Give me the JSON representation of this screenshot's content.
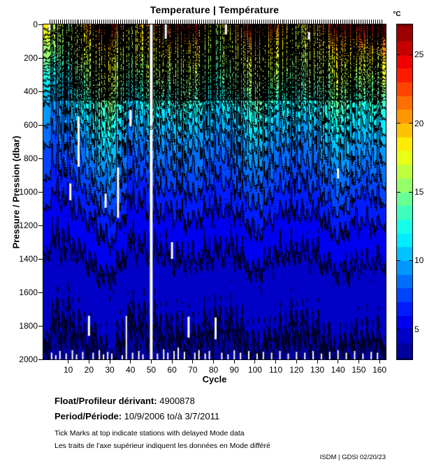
{
  "title": "Temperature | Température",
  "axes": {
    "x": {
      "label": "Cycle",
      "ticks": [
        10,
        20,
        30,
        40,
        50,
        60,
        70,
        80,
        90,
        100,
        110,
        120,
        130,
        140,
        150,
        160
      ],
      "range": [
        -2,
        163
      ]
    },
    "y": {
      "label": "Pressure / Pression (dbar)",
      "ticks": [
        0,
        200,
        400,
        600,
        800,
        1000,
        1200,
        1400,
        1600,
        1800,
        2000
      ],
      "range": [
        0,
        2000
      ],
      "inverted": true
    }
  },
  "colorbar": {
    "unit": "°C",
    "ticks": [
      5,
      10,
      15,
      20,
      25
    ],
    "vmin": 2.8,
    "vmax": 27.2,
    "band_step": 1
  },
  "chart_data": {
    "type": "heatmap",
    "title": "Temperature | Température",
    "xlabel": "Cycle",
    "ylabel": "Pressure / Pression (dbar)",
    "z_name": "temperature_c",
    "colormap": "jet",
    "contour_interval_c": 1,
    "cycles": [
      1,
      10,
      20,
      30,
      40,
      50,
      60,
      70,
      80,
      90,
      100,
      110,
      120,
      130,
      140,
      150,
      160
    ],
    "pressures": [
      0,
      50,
      100,
      200,
      300,
      400,
      500,
      700,
      1000,
      1200,
      1500,
      2000
    ],
    "temperature": [
      [
        17.0,
        16.0,
        21.0,
        25.5,
        17.0,
        21.0,
        24.0,
        25.5,
        16.0,
        21.0,
        26.5,
        22.0,
        17.5,
        21.0,
        26.0,
        25.0,
        27.0
      ],
      [
        16.5,
        15.8,
        19.5,
        23.0,
        16.6,
        20.0,
        22.0,
        23.0,
        15.6,
        19.0,
        23.5,
        20.0,
        17.0,
        19.5,
        23.5,
        22.5,
        24.5
      ],
      [
        15.5,
        15.5,
        18.5,
        20.5,
        16.2,
        19.0,
        19.5,
        20.5,
        15.3,
        18.0,
        21.0,
        18.5,
        16.8,
        18.5,
        21.0,
        20.5,
        21.5
      ],
      [
        13.0,
        14.5,
        17.0,
        18.3,
        15.2,
        17.5,
        17.0,
        18.0,
        14.8,
        16.5,
        18.0,
        17.0,
        16.0,
        17.0,
        18.3,
        17.8,
        18.2
      ],
      [
        11.2,
        12.5,
        15.5,
        17.8,
        13.5,
        16.0,
        15.5,
        16.0,
        13.6,
        15.0,
        16.5,
        15.5,
        14.8,
        15.5,
        17.0,
        16.0,
        16.3
      ],
      [
        10.0,
        11.0,
        13.8,
        16.3,
        11.5,
        14.0,
        13.5,
        14.0,
        12.0,
        13.0,
        15.0,
        13.5,
        13.0,
        13.5,
        15.5,
        14.0,
        14.3
      ],
      [
        9.0,
        9.8,
        12.0,
        14.5,
        10.0,
        12.0,
        11.5,
        12.0,
        10.5,
        11.0,
        13.0,
        11.5,
        11.0,
        11.5,
        13.5,
        12.0,
        12.4
      ],
      [
        7.5,
        8.0,
        9.6,
        11.5,
        8.0,
        9.2,
        9.0,
        9.5,
        8.5,
        8.8,
        10.5,
        9.0,
        8.8,
        9.0,
        10.8,
        9.5,
        9.9
      ],
      [
        6.0,
        6.2,
        7.0,
        8.5,
        6.2,
        6.6,
        6.8,
        7.0,
        6.5,
        6.6,
        7.8,
        6.8,
        6.6,
        6.8,
        8.0,
        7.0,
        7.2
      ],
      [
        5.2,
        5.3,
        5.8,
        6.5,
        5.3,
        5.5,
        5.6,
        5.8,
        5.5,
        5.5,
        6.2,
        5.6,
        5.5,
        5.6,
        6.3,
        5.8,
        5.9
      ],
      [
        4.4,
        4.4,
        4.7,
        5.0,
        4.4,
        4.5,
        4.6,
        4.7,
        4.5,
        4.5,
        4.9,
        4.6,
        4.5,
        4.6,
        4.9,
        4.7,
        4.7
      ],
      [
        3.7,
        3.7,
        3.8,
        4.0,
        3.7,
        3.7,
        3.8,
        3.8,
        3.7,
        3.7,
        3.9,
        3.8,
        3.7,
        3.8,
        3.9,
        3.8,
        3.8
      ]
    ],
    "contour_labels": [
      {
        "text": "18",
        "cycle": 26,
        "pressure": 300
      },
      {
        "text": "18",
        "cycle": 52,
        "pressure": 120
      },
      {
        "text": "19",
        "cycle": 120,
        "pressure": 55
      },
      {
        "text": "16",
        "cycle": 100,
        "pressure": 330
      },
      {
        "text": "13",
        "cycle": 117,
        "pressure": 95
      },
      {
        "text": "8",
        "cycle": 50,
        "pressure": 620
      },
      {
        "text": "6",
        "cycle": 99,
        "pressure": 1035
      },
      {
        "text": "5",
        "cycle": 55,
        "pressure": 1330
      },
      {
        "text": "4",
        "cycle": 85,
        "pressure": 1430
      },
      {
        "text": "4",
        "cycle": 68,
        "pressure": 1680
      },
      {
        "text": "4",
        "cycle": 80,
        "pressure": 1760
      },
      {
        "text": "4",
        "cycle": 150,
        "pressure": 1700
      },
      {
        "text": "4",
        "cycle": 35,
        "pressure": 1720
      },
      {
        "text": "7",
        "cycle": 133,
        "pressure": 900
      },
      {
        "text": "20",
        "cycle": 157,
        "pressure": 110
      },
      {
        "text": "23",
        "cycle": 156,
        "pressure": 55
      }
    ],
    "data_gaps": {
      "full_profile_cycles": [
        50
      ],
      "segments": [
        {
          "cycle": 1,
          "from": 0,
          "to": 35
        },
        {
          "cycle": 11,
          "from": 950,
          "to": 1050
        },
        {
          "cycle": 15,
          "from": 550,
          "to": 850
        },
        {
          "cycle": 20,
          "from": 1740,
          "to": 1860
        },
        {
          "cycle": 28,
          "from": 1010,
          "to": 1095
        },
        {
          "cycle": 34,
          "from": 855,
          "to": 1155
        },
        {
          "cycle": 40,
          "from": 510,
          "to": 610
        },
        {
          "cycle": 57,
          "from": 0,
          "to": 85
        },
        {
          "cycle": 60,
          "from": 1300,
          "to": 1400
        },
        {
          "cycle": 68,
          "from": 1745,
          "to": 1870
        },
        {
          "cycle": 81,
          "from": 1750,
          "to": 1880
        },
        {
          "cycle": 86,
          "from": 0,
          "to": 60
        },
        {
          "cycle": 126,
          "from": 45,
          "to": 90
        },
        {
          "cycle": 140,
          "from": 860,
          "to": 920
        }
      ],
      "bottom_max_pressure": [
        [
          2,
          1960
        ],
        [
          4,
          1975
        ],
        [
          6,
          1950
        ],
        [
          9,
          1965
        ],
        [
          12,
          1945
        ],
        [
          14,
          1970
        ],
        [
          17,
          1955
        ],
        [
          22,
          1960
        ],
        [
          25,
          1945
        ],
        [
          27,
          1970
        ],
        [
          29,
          1955
        ],
        [
          31,
          1965
        ],
        [
          36,
          1975
        ],
        [
          38,
          1740
        ],
        [
          41,
          1960
        ],
        [
          44,
          1950
        ],
        [
          46,
          1970
        ],
        [
          53,
          1965
        ],
        [
          56,
          1940
        ],
        [
          58,
          1960
        ],
        [
          61,
          1950
        ],
        [
          63,
          1930
        ],
        [
          66,
          1955
        ],
        [
          71,
          1960
        ],
        [
          73,
          1945
        ],
        [
          76,
          1965
        ],
        [
          78,
          1950
        ],
        [
          84,
          1960
        ],
        [
          87,
          1970
        ],
        [
          90,
          1945
        ],
        [
          93,
          1960
        ],
        [
          97,
          1950
        ],
        [
          101,
          1965
        ],
        [
          104,
          1955
        ],
        [
          108,
          1960
        ],
        [
          112,
          1950
        ],
        [
          116,
          1965
        ],
        [
          120,
          1955
        ],
        [
          124,
          1960
        ],
        [
          128,
          1950
        ],
        [
          132,
          1965
        ],
        [
          136,
          1955
        ],
        [
          140,
          1945
        ],
        [
          144,
          1960
        ],
        [
          148,
          1950
        ],
        [
          152,
          1965
        ],
        [
          156,
          1955
        ],
        [
          159,
          1960
        ]
      ]
    },
    "delayed_mode_tick_ranges": [
      [
        1,
        48
      ],
      [
        52,
        161
      ]
    ]
  },
  "annotations": {
    "float_label": "Float/Profileur dérivant:",
    "float_value": "4900878",
    "period_label": "Period/Période:",
    "period_value": "10/9/2006 to/à 3/7/2011",
    "note_en": "Tick Marks at top indicate stations with delayed Mode data",
    "note_fr": "Les traits de l'axe supérieur indiquent les données en Mode différé",
    "credit": "ISDM | GDSI 02/20/23"
  }
}
